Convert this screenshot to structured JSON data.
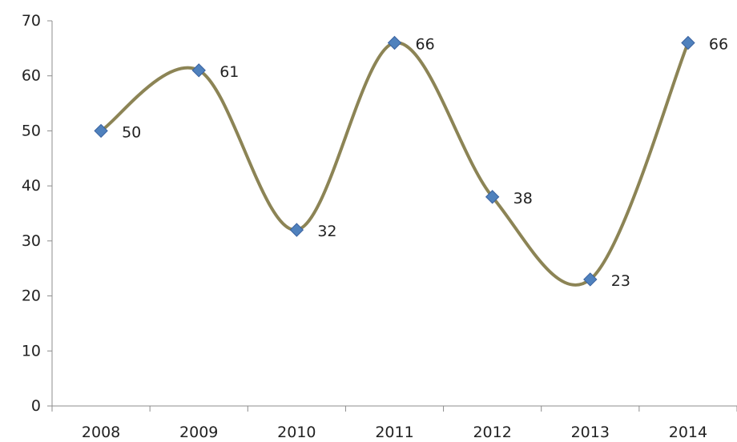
{
  "chart_data": {
    "type": "line",
    "smooth": true,
    "title": "",
    "xlabel": "",
    "ylabel": "",
    "categories": [
      "2008",
      "2009",
      "2010",
      "2011",
      "2012",
      "2013",
      "2014"
    ],
    "series": [
      {
        "values": [
          50,
          61,
          32,
          66,
          38,
          23,
          66
        ],
        "line_color": "#8c8455",
        "marker": "diamond",
        "marker_color": "#4f81bd"
      }
    ],
    "ylim": [
      0,
      70
    ],
    "yticks": [
      0,
      10,
      20,
      30,
      40,
      50,
      60,
      70
    ],
    "grid": false,
    "legend": "none",
    "data_labels": true
  }
}
